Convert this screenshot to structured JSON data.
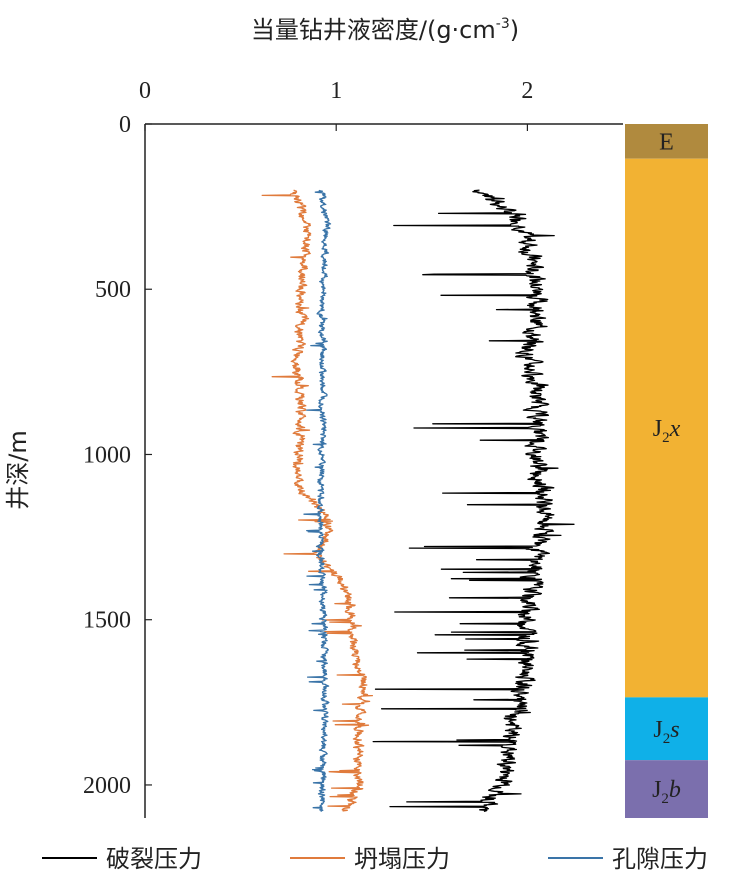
{
  "chart_data": {
    "type": "line",
    "xlabel": "当量钻井液密度/(g·cm",
    "xlabel_exp": "-3",
    "xlabel_close": ")",
    "ylabel": "井深/m",
    "xlim": [
      0,
      2.5
    ],
    "ylim": [
      0,
      2100
    ],
    "x_ticks": [
      "0",
      "1",
      "2"
    ],
    "y_ticks": [
      "0",
      "500",
      "1000",
      "1500",
      "2000"
    ],
    "grid": false,
    "legend_position": "bottom",
    "series": [
      {
        "name": "破裂压力",
        "color": "#000000",
        "depth": [
          200,
          300,
          400,
          500,
          600,
          700,
          800,
          900,
          1000,
          1100,
          1200,
          1300,
          1400,
          1500,
          1600,
          1700,
          1800,
          1900,
          2000,
          2080
        ],
        "values": [
          1.75,
          1.98,
          2.02,
          2.05,
          2.05,
          2.0,
          2.05,
          2.05,
          2.05,
          2.08,
          2.1,
          2.05,
          2.02,
          2.0,
          2.0,
          1.98,
          1.92,
          1.9,
          1.88,
          1.75
        ]
      },
      {
        "name": "坍塌压力",
        "color": "#e07b3c",
        "depth": [
          200,
          300,
          400,
          500,
          600,
          700,
          800,
          900,
          1000,
          1100,
          1200,
          1300,
          1400,
          1500,
          1600,
          1700,
          1800,
          1900,
          2000,
          2080
        ],
        "values": [
          0.78,
          0.85,
          0.83,
          0.82,
          0.82,
          0.8,
          0.8,
          0.82,
          0.8,
          0.8,
          0.98,
          0.9,
          1.05,
          1.08,
          1.1,
          1.15,
          1.12,
          1.12,
          1.12,
          1.05
        ]
      },
      {
        "name": "孔隙压力",
        "color": "#3a74a8",
        "depth": [
          200,
          300,
          400,
          500,
          600,
          700,
          800,
          900,
          1000,
          1100,
          1200,
          1300,
          1400,
          1500,
          1600,
          1700,
          1800,
          1900,
          2000,
          2080
        ],
        "values": [
          0.92,
          0.95,
          0.94,
          0.93,
          0.92,
          0.93,
          0.93,
          0.93,
          0.93,
          0.92,
          0.92,
          0.92,
          0.93,
          0.93,
          0.94,
          0.94,
          0.94,
          0.93,
          0.93,
          0.92
        ]
      }
    ],
    "strata": [
      {
        "label": "E",
        "sub": "",
        "italic": "",
        "top": 0,
        "bottom": 105,
        "color": "#b08a3e"
      },
      {
        "label": "J",
        "sub": "2",
        "italic": "x",
        "top": 105,
        "bottom": 1735,
        "color": "#f2b233"
      },
      {
        "label": "J",
        "sub": "2",
        "italic": "s",
        "top": 1735,
        "bottom": 1925,
        "color": "#0fb0e8"
      },
      {
        "label": "J",
        "sub": "2",
        "italic": "b",
        "top": 1925,
        "bottom": 2100,
        "color": "#7b6fad"
      }
    ]
  }
}
